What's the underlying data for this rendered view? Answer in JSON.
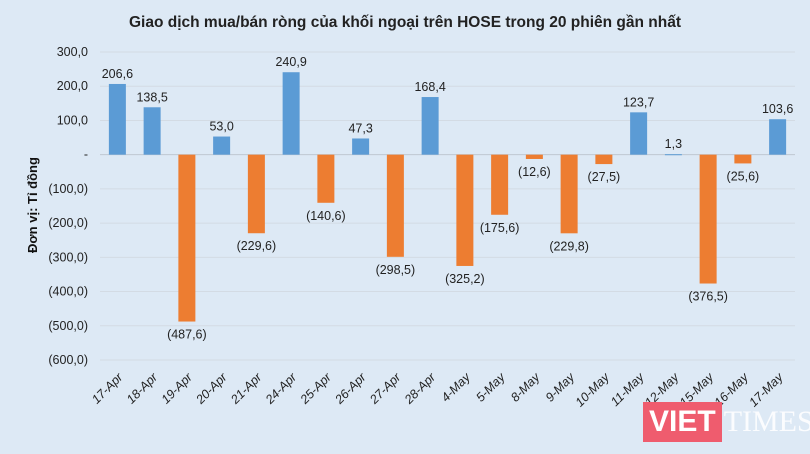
{
  "chart_data": {
    "type": "bar",
    "title": "Giao dịch mua/bán ròng của khối ngoại trên HOSE trong 20 phiên gần nhất",
    "ylabel": "Đơn vị: Tỉ đồng",
    "xlabel": "",
    "ylim": [
      -600,
      300
    ],
    "yticks": [
      300,
      200,
      100,
      0,
      -100,
      -200,
      -300,
      -400,
      -500,
      -600
    ],
    "ytick_labels": [
      "300,0",
      "200,0",
      "100,0",
      "-",
      "(100,0)",
      "(200,0)",
      "(300,0)",
      "(400,0)",
      "(500,0)",
      "(600,0)"
    ],
    "grid": true,
    "categories": [
      "17-Apr",
      "18-Apr",
      "19-Apr",
      "20-Apr",
      "21-Apr",
      "24-Apr",
      "25-Apr",
      "26-Apr",
      "27-Apr",
      "28-Apr",
      "4-May",
      "5-May",
      "8-May",
      "9-May",
      "10-May",
      "11-May",
      "12-May",
      "15-May",
      "16-May",
      "17-May"
    ],
    "values": [
      206.6,
      138.5,
      -487.6,
      53.0,
      -229.6,
      240.9,
      -140.6,
      47.3,
      -298.5,
      168.4,
      -325.2,
      -175.6,
      -12.6,
      -229.8,
      -27.5,
      123.7,
      1.3,
      -376.5,
      -25.6,
      103.6
    ],
    "data_labels": [
      "206,6",
      "138,5",
      "(487,6)",
      "53,0",
      "(229,6)",
      "240,9",
      "(140,6)",
      "47,3",
      "(298,5)",
      "168,4",
      "(325,2)",
      "(175,6)",
      "(12,6)",
      "(229,8)",
      "(27,5)",
      "123,7",
      "1,3",
      "(376,5)",
      "(25,6)",
      "103,6"
    ],
    "colors": {
      "positive": "#5b9bd5",
      "negative": "#ed7d31"
    }
  },
  "watermark": {
    "brand_a": "VIET",
    "brand_b": "TIMES"
  }
}
